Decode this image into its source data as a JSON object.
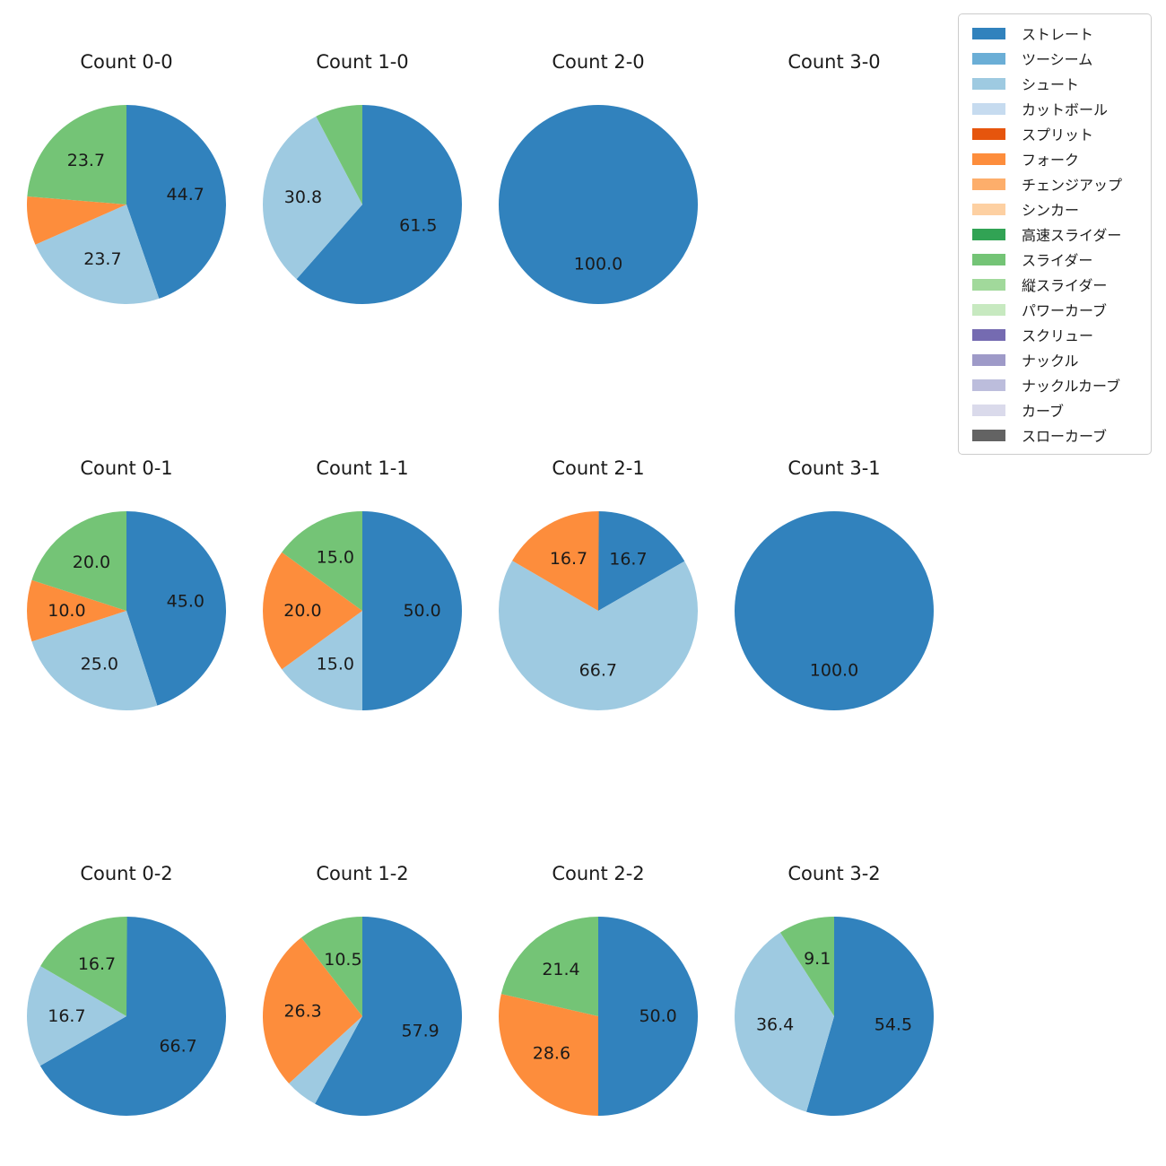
{
  "figure": {
    "background": "#ffffff",
    "text_color": "#1a1a1a"
  },
  "legend": {
    "position": "upper right",
    "border_color": "#cccccc",
    "items": [
      {
        "label": "ストレート",
        "color": "#3182bd"
      },
      {
        "label": "ツーシーム",
        "color": "#6baed6"
      },
      {
        "label": "シュート",
        "color": "#9ecae1"
      },
      {
        "label": "カットボール",
        "color": "#c6dbef"
      },
      {
        "label": "スプリット",
        "color": "#e6550d"
      },
      {
        "label": "フォーク",
        "color": "#fd8d3c"
      },
      {
        "label": "チェンジアップ",
        "color": "#fdae6b"
      },
      {
        "label": "シンカー",
        "color": "#fdd0a2"
      },
      {
        "label": "高速スライダー",
        "color": "#31a354"
      },
      {
        "label": "スライダー",
        "color": "#74c476"
      },
      {
        "label": "縦スライダー",
        "color": "#a1d99b"
      },
      {
        "label": "パワーカーブ",
        "color": "#c7e9c0"
      },
      {
        "label": "スクリュー",
        "color": "#756bb1"
      },
      {
        "label": "ナックル",
        "color": "#9e9ac8"
      },
      {
        "label": "ナックルカーブ",
        "color": "#bcbddc"
      },
      {
        "label": "カーブ",
        "color": "#dadaeb"
      },
      {
        "label": "スローカーブ",
        "color": "#636363"
      }
    ]
  },
  "chart_data": [
    {
      "type": "pie",
      "title": "Count 0-0",
      "start_angle": "top",
      "direction": "clockwise",
      "pctdistance": 0.6,
      "slices": [
        {
          "label": "ストレート",
          "value": 44.7,
          "pct_label": "44.7"
        },
        {
          "label": "シュート",
          "value": 23.7,
          "pct_label": "23.7"
        },
        {
          "label": "フォーク",
          "value": 7.9,
          "pct_label": ""
        },
        {
          "label": "スライダー",
          "value": 23.7,
          "pct_label": "23.7"
        }
      ]
    },
    {
      "type": "pie",
      "title": "Count 1-0",
      "start_angle": "top",
      "direction": "clockwise",
      "pctdistance": 0.6,
      "slices": [
        {
          "label": "ストレート",
          "value": 61.5,
          "pct_label": "61.5"
        },
        {
          "label": "シュート",
          "value": 30.8,
          "pct_label": "30.8"
        },
        {
          "label": "スライダー",
          "value": 7.7,
          "pct_label": ""
        }
      ]
    },
    {
      "type": "pie",
      "title": "Count 2-0",
      "start_angle": "top",
      "direction": "clockwise",
      "pctdistance": 0.6,
      "slices": [
        {
          "label": "ストレート",
          "value": 100.0,
          "pct_label": "100.0"
        }
      ]
    },
    {
      "type": "pie",
      "title": "Count 3-0",
      "start_angle": "top",
      "direction": "clockwise",
      "pctdistance": 0.6,
      "slices": []
    },
    {
      "type": "pie",
      "title": "Count 0-1",
      "start_angle": "top",
      "direction": "clockwise",
      "pctdistance": 0.6,
      "slices": [
        {
          "label": "ストレート",
          "value": 45.0,
          "pct_label": "45.0"
        },
        {
          "label": "シュート",
          "value": 25.0,
          "pct_label": "25.0"
        },
        {
          "label": "フォーク",
          "value": 10.0,
          "pct_label": "10.0"
        },
        {
          "label": "スライダー",
          "value": 20.0,
          "pct_label": "20.0"
        }
      ]
    },
    {
      "type": "pie",
      "title": "Count 1-1",
      "start_angle": "top",
      "direction": "clockwise",
      "pctdistance": 0.6,
      "slices": [
        {
          "label": "ストレート",
          "value": 50.0,
          "pct_label": "50.0"
        },
        {
          "label": "シュート",
          "value": 15.0,
          "pct_label": "15.0"
        },
        {
          "label": "フォーク",
          "value": 20.0,
          "pct_label": "20.0"
        },
        {
          "label": "スライダー",
          "value": 15.0,
          "pct_label": "15.0"
        }
      ]
    },
    {
      "type": "pie",
      "title": "Count 2-1",
      "start_angle": "top",
      "direction": "clockwise",
      "pctdistance": 0.6,
      "slices": [
        {
          "label": "ストレート",
          "value": 16.7,
          "pct_label": "16.7"
        },
        {
          "label": "シュート",
          "value": 66.7,
          "pct_label": "66.7"
        },
        {
          "label": "フォーク",
          "value": 16.7,
          "pct_label": "16.7"
        }
      ]
    },
    {
      "type": "pie",
      "title": "Count 3-1",
      "start_angle": "top",
      "direction": "clockwise",
      "pctdistance": 0.6,
      "slices": [
        {
          "label": "ストレート",
          "value": 100.0,
          "pct_label": "100.0"
        }
      ]
    },
    {
      "type": "pie",
      "title": "Count 0-2",
      "start_angle": "top",
      "direction": "clockwise",
      "pctdistance": 0.6,
      "slices": [
        {
          "label": "ストレート",
          "value": 66.7,
          "pct_label": "66.7"
        },
        {
          "label": "シュート",
          "value": 16.7,
          "pct_label": "16.7"
        },
        {
          "label": "スライダー",
          "value": 16.7,
          "pct_label": "16.7"
        }
      ]
    },
    {
      "type": "pie",
      "title": "Count 1-2",
      "start_angle": "top",
      "direction": "clockwise",
      "pctdistance": 0.6,
      "slices": [
        {
          "label": "ストレート",
          "value": 57.9,
          "pct_label": "57.9"
        },
        {
          "label": "シュート",
          "value": 5.3,
          "pct_label": ""
        },
        {
          "label": "フォーク",
          "value": 26.3,
          "pct_label": "26.3"
        },
        {
          "label": "スライダー",
          "value": 10.5,
          "pct_label": "10.5"
        }
      ]
    },
    {
      "type": "pie",
      "title": "Count 2-2",
      "start_angle": "top",
      "direction": "clockwise",
      "pctdistance": 0.6,
      "slices": [
        {
          "label": "ストレート",
          "value": 50.0,
          "pct_label": "50.0"
        },
        {
          "label": "フォーク",
          "value": 28.6,
          "pct_label": "28.6"
        },
        {
          "label": "スライダー",
          "value": 21.4,
          "pct_label": "21.4"
        }
      ]
    },
    {
      "type": "pie",
      "title": "Count 3-2",
      "start_angle": "top",
      "direction": "clockwise",
      "pctdistance": 0.6,
      "slices": [
        {
          "label": "ストレート",
          "value": 54.5,
          "pct_label": "54.5"
        },
        {
          "label": "シュート",
          "value": 36.4,
          "pct_label": "36.4"
        },
        {
          "label": "スライダー",
          "value": 9.1,
          "pct_label": "9.1"
        }
      ]
    }
  ]
}
